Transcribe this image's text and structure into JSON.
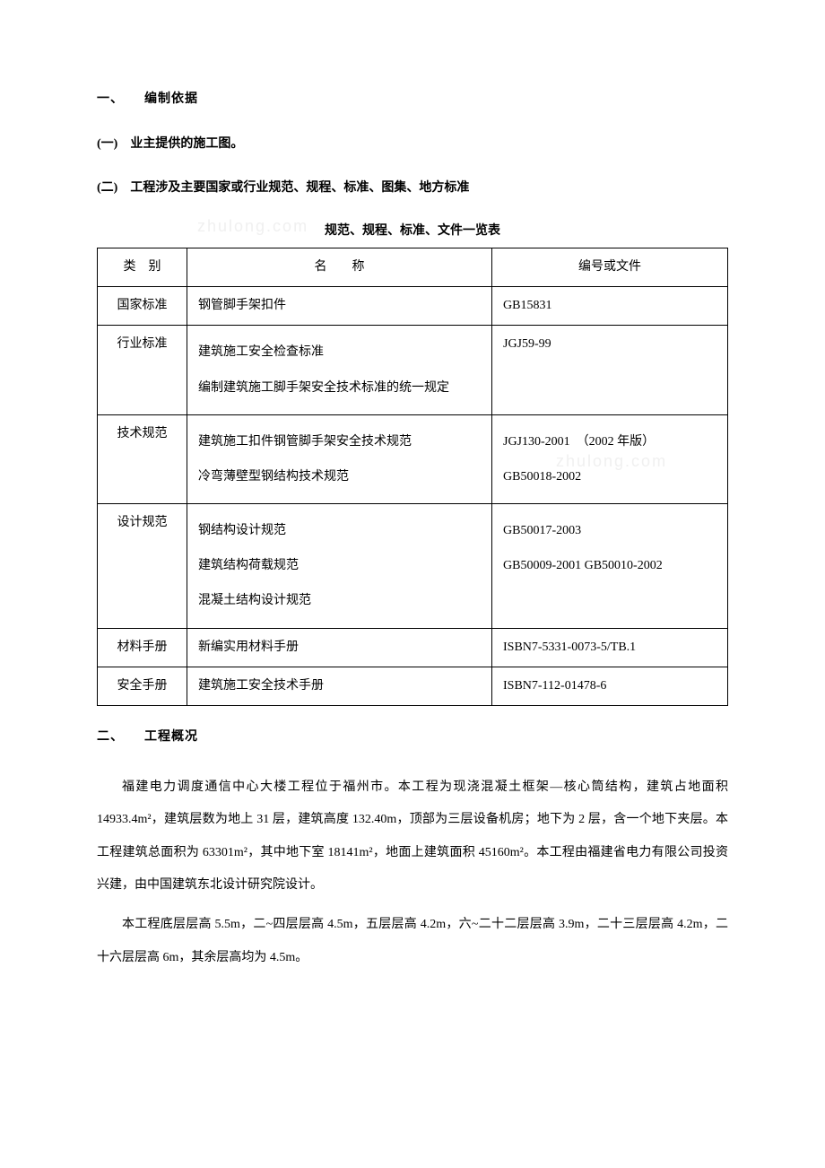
{
  "section1": {
    "heading": "一、　　编制依据",
    "sub1": "(一)　业主提供的施工图。",
    "sub2": "(二)　工程涉及主要国家或行业规范、规程、标准、图集、地方标准",
    "table_caption": "规范、规程、标准、文件一览表",
    "table": {
      "headers": {
        "cat": "类　别",
        "name": "名　　称",
        "code": "编号或文件"
      },
      "rows": [
        {
          "cat": "国家标准",
          "name": "钢管脚手架扣件",
          "code": "GB15831"
        },
        {
          "cat": "行业标准",
          "name": "建筑施工安全检查标准\n编制建筑施工脚手架安全技术标准的统一规定",
          "code": "JGJ59-99"
        },
        {
          "cat": "技术规范",
          "name": "建筑施工扣件钢管脚手架安全技术规范\n冷弯薄壁型钢结构技术规范",
          "code": "JGJ130-2001　（2002 年版）\nGB50018-2002"
        },
        {
          "cat": "设计规范",
          "name": "钢结构设计规范\n建筑结构荷载规范\n混凝土结构设计规范",
          "code": "GB50017-2003\nGB50009-2001 GB50010-2002"
        },
        {
          "cat": "材料手册",
          "name": "新编实用材料手册",
          "code": "ISBN7-5331-0073-5/TB.1"
        },
        {
          "cat": "安全手册",
          "name": "建筑施工安全技术手册",
          "code": "ISBN7-112-01478-6"
        }
      ]
    }
  },
  "section2": {
    "heading": "二、　　工程概况",
    "para1": "福建电力调度通信中心大楼工程位于福州市。本工程为现浇混凝土框架—核心筒结构，建筑占地面积 14933.4m²，建筑层数为地上 31 层，建筑高度 132.40m，顶部为三层设备机房；地下为 2 层，含一个地下夹层。本工程建筑总面积为 63301m²，其中地下室 18141m²，地面上建筑面积 45160m²。本工程由福建省电力有限公司投资兴建，由中国建筑东北设计研究院设计。",
    "para2": "本工程底层层高 5.5m，二~四层层高 4.5m，五层层高 4.2m，六~二十二层层高 3.9m，二十三层层高 4.2m，二十六层层高 6m，其余层高均为 4.5m。"
  },
  "watermark": "zhulong.com"
}
